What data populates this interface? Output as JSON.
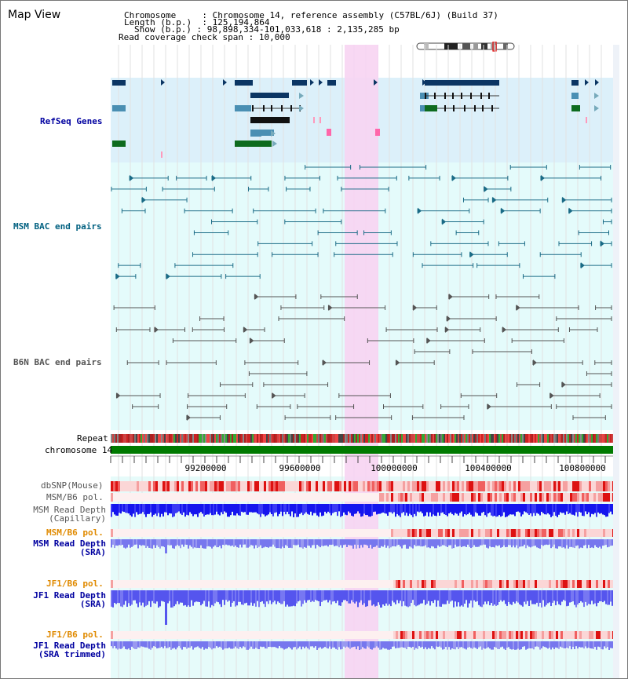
{
  "page": {
    "title": "Map View"
  },
  "info": {
    "chromosome_key": "Chromosome",
    "chromosome_val": "Chromosome 14, reference assembly (C57BL/6J) (Build 37)",
    "length_key": "Length (b.p.)",
    "length_val": "125,194,864",
    "show_key": "Show (b.p.)",
    "show_val": "98,898,334-101,033,618 : 2,135,285 bp",
    "coverage_key": "Read coverage check span",
    "coverage_val": "10,000"
  },
  "tracks": {
    "refseq": "RefSeq Genes",
    "msm_bac": "MSM BAC end pairs",
    "b6n_bac": "B6N BAC end pairs",
    "repeat": "Repeat",
    "chromosome": "chromosome 14",
    "dbsnp": "dbSNP(Mouse)",
    "msm_b6_pol_1": "MSM/B6 pol.",
    "msm_read_depth_cap_1": "MSM Read Depth",
    "msm_read_depth_cap_2": "(Capillary)",
    "msm_b6_pol_2": "MSM/B6 pol.",
    "msm_read_depth_sra_1": "MSM Read Depth",
    "msm_read_depth_sra_2": "(SRA)",
    "jf1_b6_pol_1": "JF1/B6 pol.",
    "jf1_read_depth_sra_1": "JF1 Read Depth",
    "jf1_read_depth_sra_2": "(SRA)",
    "jf1_b6_pol_2": "JF1/B6 pol.",
    "jf1_read_depth_trim_1": "JF1 Read Depth",
    "jf1_read_depth_trim_2": "(SRA trimmed)"
  },
  "axis": {
    "ticks": [
      "99200000",
      "99600000",
      "100000000",
      "100400000",
      "100800000"
    ]
  },
  "colors": {
    "refseq_bg": "#dcf0fa",
    "bac_bg": "#e4fbfb",
    "highlight": "#f7d4f2",
    "gene_dark": "#0b3563",
    "gene_mid": "#4a8fb3",
    "gene_green": "#0d6b1e",
    "msm_bac_line": "#1a6b86",
    "b6n_bac_line": "#555555",
    "label_blue": "#0000a0",
    "label_teal": "#006080",
    "label_orange": "#e08a00",
    "chromosome_bar": "#007a00",
    "depth_blue": "#1515ee"
  }
}
